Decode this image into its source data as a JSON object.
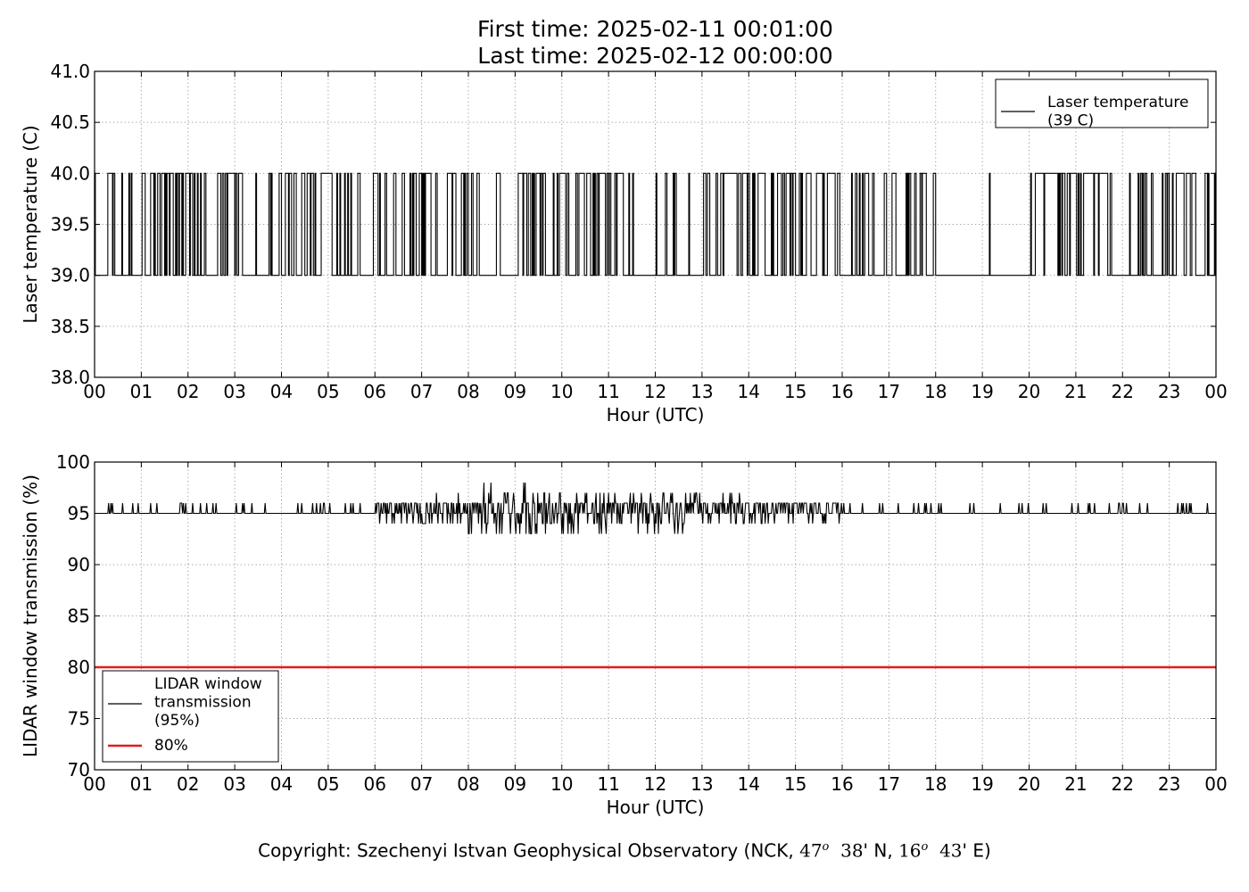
{
  "title": {
    "line1": "First time: 2025-02-11 00:01:00",
    "line2": "Last time: 2025-02-12 00:00:00"
  },
  "copyright": {
    "prefix": "Copyright: Szechenyi Istvan Geophysical Observatory (NCK, ",
    "lat_deg": "47",
    "lat_sup": "o",
    "lat_min": "38",
    "lat_suffix": "' N, ",
    "lon_deg": "16",
    "lon_sup": "o",
    "lon_min": "43",
    "lon_suffix": "' E)"
  },
  "colors": {
    "series": "#000000",
    "threshold": "#e41a1c",
    "grid": "#9a9a9a"
  },
  "chart_data": [
    {
      "type": "line",
      "xlabel": "Hour (UTC)",
      "ylabel": "Laser temperature (C)",
      "xlim": [
        0,
        24
      ],
      "ylim": [
        38.0,
        41.0
      ],
      "xticks": [
        0,
        1,
        2,
        3,
        4,
        5,
        6,
        7,
        8,
        9,
        10,
        11,
        12,
        13,
        14,
        15,
        16,
        17,
        18,
        19,
        20,
        21,
        22,
        23,
        24
      ],
      "xtick_labels": [
        "00",
        "01",
        "02",
        "03",
        "04",
        "05",
        "06",
        "07",
        "08",
        "09",
        "10",
        "11",
        "12",
        "13",
        "14",
        "15",
        "16",
        "17",
        "18",
        "19",
        "20",
        "21",
        "22",
        "23",
        "00"
      ],
      "yticks": [
        38.0,
        38.5,
        39.0,
        39.5,
        40.0,
        40.5,
        41.0
      ],
      "ytick_labels": [
        "38.0",
        "38.5",
        "39.0",
        "39.5",
        "40.0",
        "40.5",
        "41.0"
      ],
      "grid": true,
      "legend_position": "top-right",
      "series": [
        {
          "name": "Laser temperature\n(39 C)",
          "color": "#000000",
          "description": "Step signal toggling between 39.0 and 40.0 C with 1-minute resolution",
          "level_low": 39.0,
          "level_high": 40.0,
          "high_fraction_by_hour": [
            0.35,
            0.45,
            0.5,
            0.4,
            0.55,
            0.35,
            0.35,
            0.5,
            0.35,
            0.4,
            0.55,
            0.35,
            0.2,
            0.5,
            0.6,
            0.4,
            0.3,
            0.55,
            0.35,
            0.05,
            0.7,
            0.35,
            0.45,
            0.4
          ],
          "quiet_intervals": [
            [
              8.28,
              8.6
            ],
            [
              11.55,
              12.0
            ],
            [
              18.0,
              19.0
            ]
          ]
        }
      ]
    },
    {
      "type": "line",
      "xlabel": "Hour (UTC)",
      "ylabel": "LIDAR window transmission (%)",
      "xlim": [
        0,
        24
      ],
      "ylim": [
        70,
        100
      ],
      "xticks": [
        0,
        1,
        2,
        3,
        4,
        5,
        6,
        7,
        8,
        9,
        10,
        11,
        12,
        13,
        14,
        15,
        16,
        17,
        18,
        19,
        20,
        21,
        22,
        23,
        24
      ],
      "xtick_labels": [
        "00",
        "01",
        "02",
        "03",
        "04",
        "05",
        "06",
        "07",
        "08",
        "09",
        "10",
        "11",
        "12",
        "13",
        "14",
        "15",
        "16",
        "17",
        "18",
        "19",
        "20",
        "21",
        "22",
        "23",
        "00"
      ],
      "yticks": [
        70,
        75,
        80,
        85,
        90,
        95,
        100
      ],
      "ytick_labels": [
        "70",
        "75",
        "80",
        "85",
        "90",
        "95",
        "100"
      ],
      "grid": true,
      "legend_position": "bottom-left",
      "series": [
        {
          "name": "LIDAR window\ntransmission\n(95%)",
          "color": "#000000",
          "baseline": 95,
          "range": [
            92,
            98
          ],
          "noise_amplitude_by_hour": [
            0.3,
            0.3,
            0.3,
            0.3,
            0.3,
            0.3,
            1.0,
            1.5,
            2.5,
            2.5,
            2.5,
            2.0,
            2.0,
            1.6,
            1.4,
            1.0,
            0.3,
            0.3,
            0.3,
            0.3,
            0.3,
            0.3,
            0.3,
            0.3
          ]
        },
        {
          "name": "80%",
          "color": "#e41a1c",
          "constant": 80
        }
      ]
    }
  ]
}
